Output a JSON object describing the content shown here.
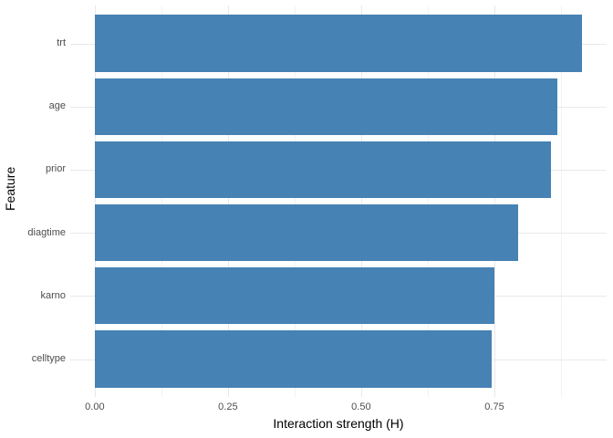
{
  "chart_data": {
    "type": "bar",
    "orientation": "horizontal",
    "title": "",
    "xlabel": "Interaction strength (H)",
    "ylabel": "Feature",
    "categories": [
      "trt",
      "age",
      "prior",
      "diagtime",
      "karno",
      "celltype"
    ],
    "values": [
      0.914,
      0.868,
      0.857,
      0.795,
      0.75,
      0.745
    ],
    "xlim": [
      -0.046,
      0.9606
    ],
    "x_major_ticks": [
      0,
      0.25,
      0.5,
      0.75
    ],
    "x_tick_labels": [
      "0.00",
      "0.25",
      "0.50",
      "0.75"
    ],
    "x_minor_ticks": [
      0.125,
      0.375,
      0.625,
      0.875
    ],
    "grid": "major-and-minor-vertical, major-horizontal-at-category-centers",
    "legend": false,
    "colors": {
      "bar_fill": "#4682B4",
      "grid_major": "#e9e9e9",
      "grid_minor": "#f2f2f2",
      "tick_label": "#4d4d4d",
      "axis_title": "#000000",
      "background": "#ffffff"
    }
  }
}
